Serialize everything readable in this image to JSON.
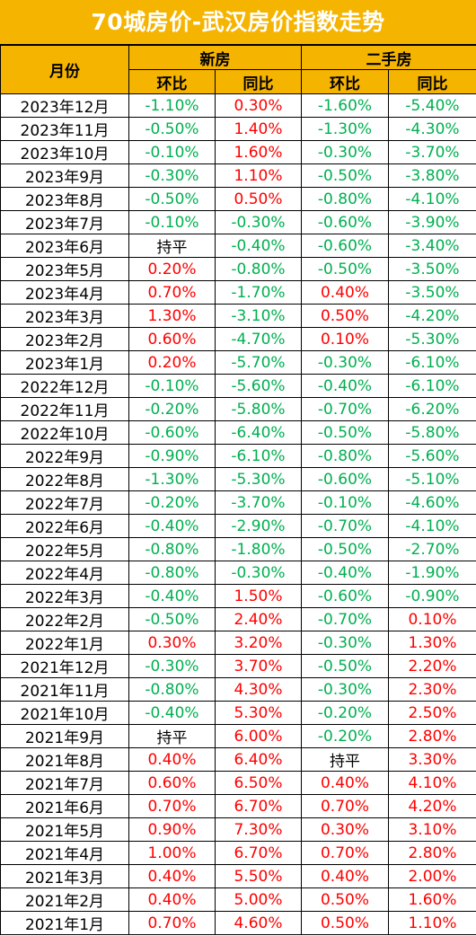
{
  "title": "70城房价-武汉房价指数走势",
  "headers": {
    "month": "月份",
    "new_home": "新房",
    "second_hand": "二手房",
    "mom": "环比",
    "yoy": "同比"
  },
  "colors": {
    "header_bg": "#f5b400",
    "negative": "#00b050",
    "positive": "#ff0000",
    "flat": "#000000"
  },
  "rows": [
    [
      "2023年12月",
      "-1.10%",
      "0.30%",
      "-1.60%",
      "-5.40%"
    ],
    [
      "2023年11月",
      "-0.50%",
      "1.40%",
      "-1.30%",
      "-4.30%"
    ],
    [
      "2023年10月",
      "-0.10%",
      "1.60%",
      "-0.30%",
      "-3.70%"
    ],
    [
      "2023年9月",
      "-0.30%",
      "1.10%",
      "-0.50%",
      "-3.80%"
    ],
    [
      "2023年8月",
      "-0.50%",
      "0.50%",
      "-0.80%",
      "-4.10%"
    ],
    [
      "2023年7月",
      "-0.10%",
      "-0.30%",
      "-0.60%",
      "-3.90%"
    ],
    [
      "2023年6月",
      "持平",
      "-0.40%",
      "-0.60%",
      "-3.40%"
    ],
    [
      "2023年5月",
      "0.20%",
      "-0.80%",
      "-0.50%",
      "-3.50%"
    ],
    [
      "2023年4月",
      "0.70%",
      "-1.70%",
      "0.40%",
      "-3.50%"
    ],
    [
      "2023年3月",
      "1.30%",
      "-3.10%",
      "0.50%",
      "-4.20%"
    ],
    [
      "2023年2月",
      "0.60%",
      "-4.70%",
      "0.10%",
      "-5.30%"
    ],
    [
      "2023年1月",
      "0.20%",
      "-5.70%",
      "-0.30%",
      "-6.10%"
    ],
    [
      "2022年12月",
      "-0.10%",
      "-5.60%",
      "-0.40%",
      "-6.10%"
    ],
    [
      "2022年11月",
      "-0.20%",
      "-5.80%",
      "-0.70%",
      "-6.20%"
    ],
    [
      "2022年10月",
      "-0.60%",
      "-6.40%",
      "-0.50%",
      "-5.80%"
    ],
    [
      "2022年9月",
      "-0.90%",
      "-6.10%",
      "-0.80%",
      "-5.60%"
    ],
    [
      "2022年8月",
      "-1.30%",
      "-5.30%",
      "-0.60%",
      "-5.10%"
    ],
    [
      "2022年7月",
      "-0.20%",
      "-3.70%",
      "-0.10%",
      "-4.60%"
    ],
    [
      "2022年6月",
      "-0.40%",
      "-2.90%",
      "-0.70%",
      "-4.10%"
    ],
    [
      "2022年5月",
      "-0.80%",
      "-1.80%",
      "-0.50%",
      "-2.70%"
    ],
    [
      "2022年4月",
      "-0.80%",
      "-0.30%",
      "-0.40%",
      "-1.90%"
    ],
    [
      "2022年3月",
      "-0.40%",
      "1.50%",
      "-0.60%",
      "-0.90%"
    ],
    [
      "2022年2月",
      "-0.50%",
      "2.40%",
      "-0.70%",
      "0.10%"
    ],
    [
      "2022年1月",
      "0.30%",
      "3.20%",
      "-0.30%",
      "1.30%"
    ],
    [
      "2021年12月",
      "-0.30%",
      "3.70%",
      "-0.50%",
      "2.20%"
    ],
    [
      "2021年11月",
      "-0.80%",
      "4.30%",
      "-0.30%",
      "2.30%"
    ],
    [
      "2021年10月",
      "-0.40%",
      "5.30%",
      "-0.20%",
      "2.50%"
    ],
    [
      "2021年9月",
      "持平",
      "6.00%",
      "-0.20%",
      "2.80%"
    ],
    [
      "2021年8月",
      "0.40%",
      "6.40%",
      "持平",
      "3.30%"
    ],
    [
      "2021年7月",
      "0.60%",
      "6.50%",
      "0.40%",
      "4.10%"
    ],
    [
      "2021年6月",
      "0.70%",
      "6.70%",
      "0.70%",
      "4.20%"
    ],
    [
      "2021年5月",
      "0.90%",
      "7.30%",
      "0.30%",
      "3.10%"
    ],
    [
      "2021年4月",
      "1.00%",
      "6.70%",
      "0.70%",
      "2.80%"
    ],
    [
      "2021年3月",
      "0.40%",
      "5.50%",
      "0.40%",
      "2.00%"
    ],
    [
      "2021年2月",
      "0.40%",
      "5.00%",
      "0.50%",
      "1.60%"
    ],
    [
      "2021年1月",
      "0.70%",
      "4.60%",
      "0.50%",
      "1.10%"
    ]
  ]
}
